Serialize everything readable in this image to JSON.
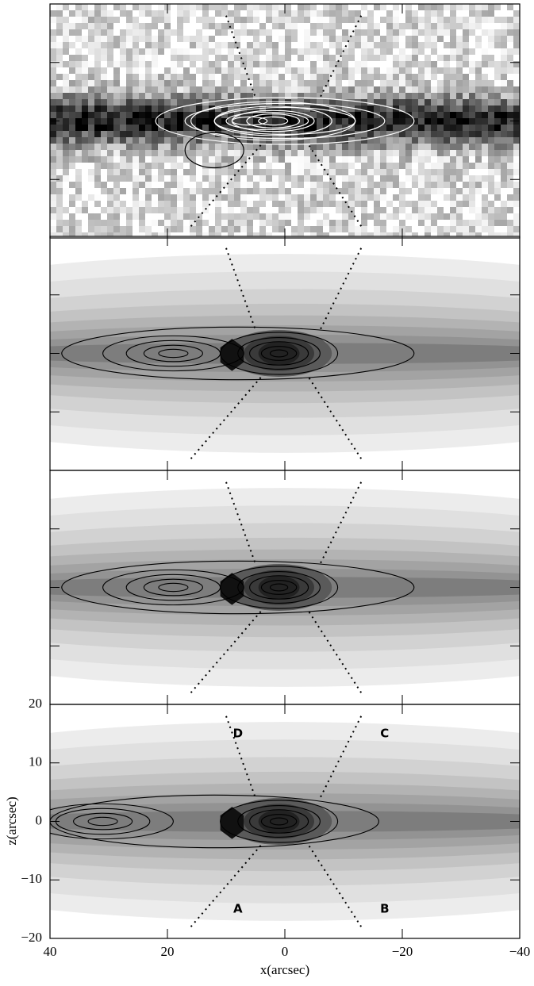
{
  "chart_data": {
    "type": "contour-panels",
    "panels": 4,
    "xlabel": "x(arcsec)",
    "ylabel": "z(arcsec)",
    "xlim": [
      40,
      -40
    ],
    "ylim": [
      -20,
      20
    ],
    "xticks": [
      40,
      20,
      0,
      {
        "value": -20,
        "label": "−20"
      },
      {
        "value": -40,
        "label": "−40"
      }
    ],
    "yticks": [
      {
        "value": -20,
        "label": "−20"
      },
      {
        "value": -10,
        "label": "−10"
      },
      0,
      10,
      20
    ],
    "annotations": [
      "A",
      "B",
      "C",
      "D"
    ]
  }
}
